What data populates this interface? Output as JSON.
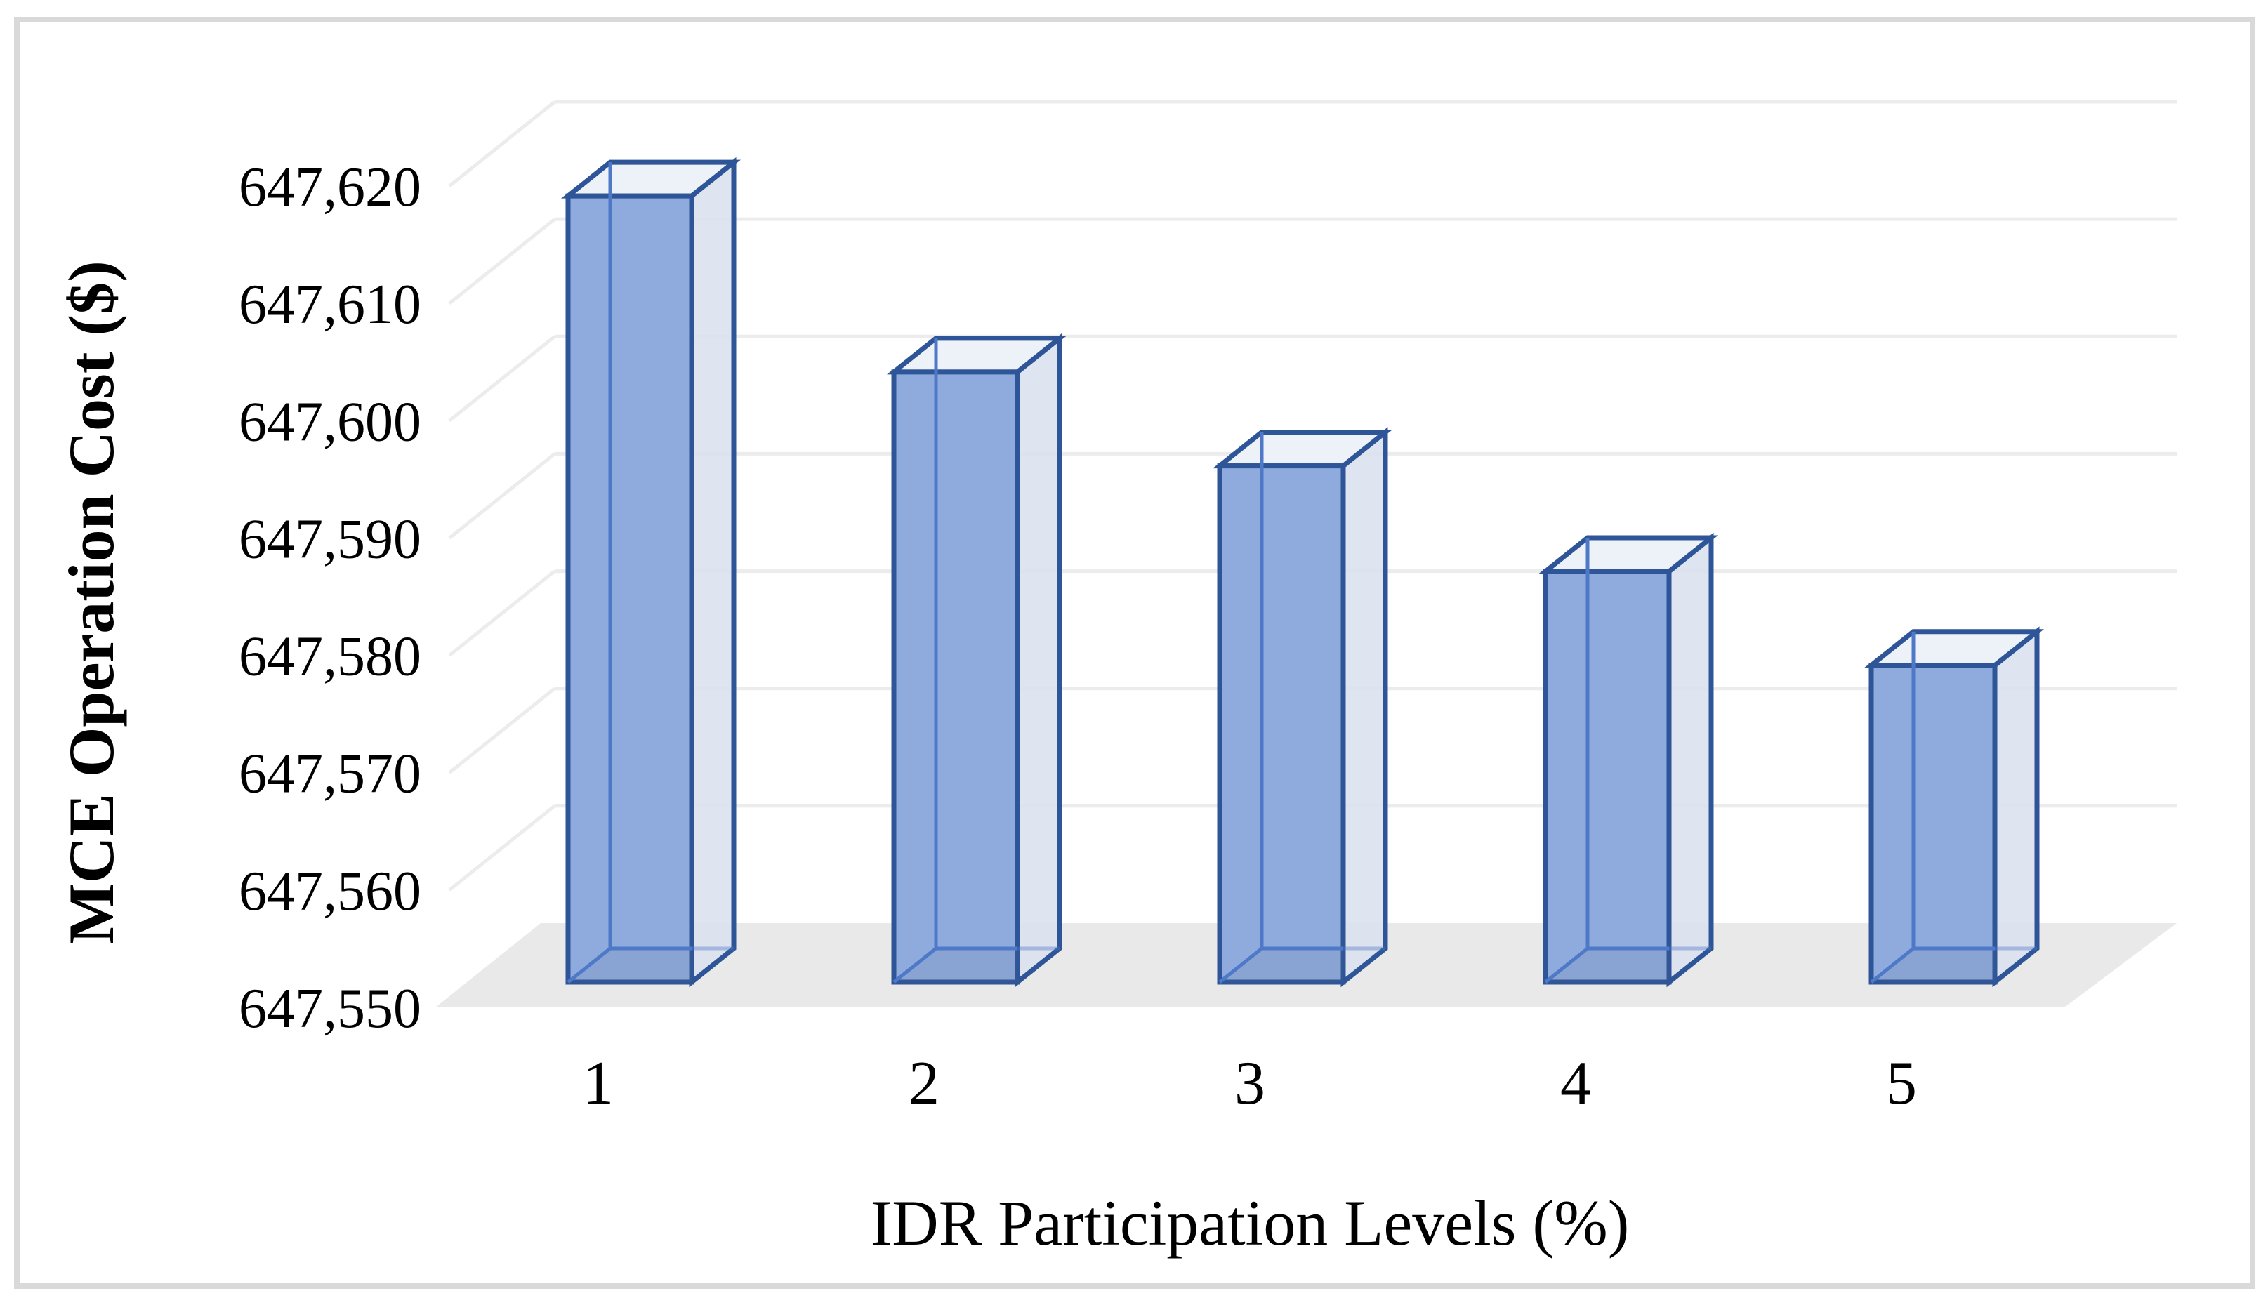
{
  "figure": {
    "kind": "3d-column-chart",
    "background": "#ffffff",
    "border_color": "#D9D9D9"
  },
  "palette": {
    "bar_front": "#8FAADC",
    "bar_side": "#DBE1EF",
    "bar_top": "#EDF1F8",
    "bar_edge": "#2E5597",
    "bar_inner_edge": "#4E79C9",
    "bar_base_shade": "rgba(90,105,130,0.10)",
    "gridline": "#ECECEC",
    "floor": "#E9E9EA",
    "text": "#000000"
  },
  "chart_data": {
    "type": "bar",
    "style": "3d-column",
    "categories": [
      "1",
      "2",
      "3",
      "4",
      "5"
    ],
    "values": [
      647617,
      647602,
      647594,
      647585,
      647577
    ],
    "series_name": "MCE Operation Cost",
    "title": "",
    "xlabel": "IDR Participation Levels (%)",
    "ylabel": "MCE Operation Cost ($)",
    "ylim": [
      647550,
      647620
    ],
    "ytick_step": 10,
    "y_tick_labels": [
      "647,550",
      "647,560",
      "647,570",
      "647,580",
      "647,590",
      "647,600",
      "647,610",
      "647,620"
    ],
    "grid": true,
    "legend_position": "none"
  }
}
